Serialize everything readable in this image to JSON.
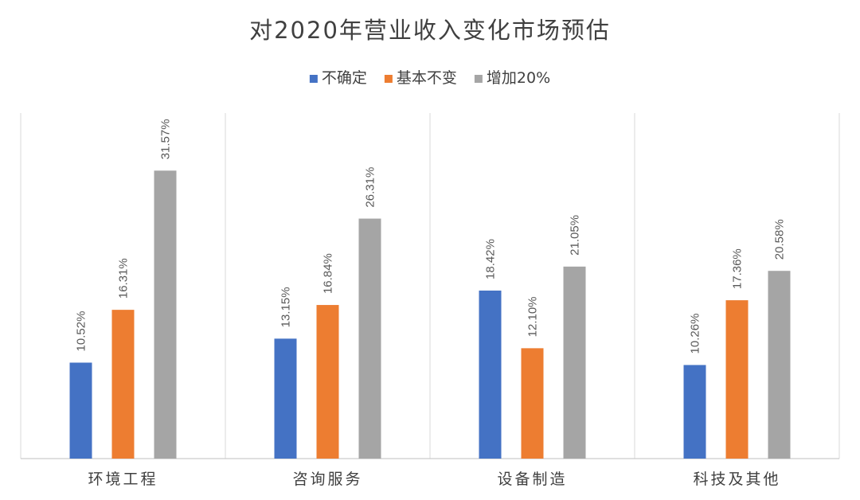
{
  "chart_data": {
    "type": "bar",
    "title": "对2020年营业收入变化市场预估",
    "categories": [
      "环境工程",
      "咨询服务",
      "设备制造",
      "科技及其他"
    ],
    "series": [
      {
        "name": "不确定",
        "color": "#4472C4",
        "values": [
          10.52,
          13.15,
          18.42,
          10.26
        ],
        "labels": [
          "10.52%",
          "13.15%",
          "18.42%",
          "10.26%"
        ]
      },
      {
        "name": "基本不变",
        "color": "#ED7D31",
        "values": [
          16.31,
          16.84,
          12.1,
          17.36
        ],
        "labels": [
          "16.31%",
          "16.84%",
          "12.10%",
          "17.36%"
        ]
      },
      {
        "name": "增加20%",
        "color": "#A5A5A5",
        "values": [
          31.57,
          26.31,
          21.05,
          20.58
        ],
        "labels": [
          "31.57%",
          "26.31%",
          "21.05%",
          "20.58%"
        ]
      }
    ],
    "ylim": [
      0,
      35
    ],
    "legend_position": "top",
    "grid": "vertical category separators"
  }
}
